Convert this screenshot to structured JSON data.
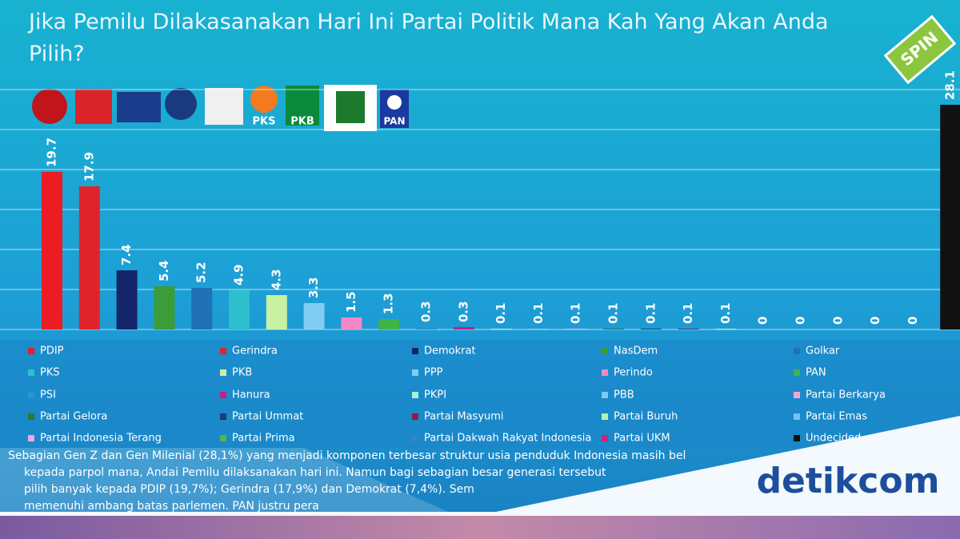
{
  "chart_data": {
    "type": "bar",
    "title": "Jika Pemilu Dilakasanakan Hari Ini Partai Politik Mana Kah Yang Akan Anda Pilih?",
    "categories": [
      "PDIP",
      "Gerindra",
      "Demokrat",
      "NasDem",
      "Golkar",
      "PKS",
      "PKB",
      "PPP",
      "Perindo",
      "PAN",
      "PSI",
      "Hanura",
      "PKPI",
      "PBB",
      "Partai Berkarya",
      "Partai Gelora",
      "Partai Ummat",
      "Partai Masyumi",
      "Partai Buruh",
      "Partai Emas",
      "Partai Indonesia Terang",
      "Partai Prima",
      "Partai Dakwah Rakyat Indonesia",
      "Partai UKM",
      "Undecided"
    ],
    "values": [
      19.7,
      17.9,
      7.4,
      5.4,
      5.2,
      4.9,
      4.3,
      3.3,
      1.5,
      1.3,
      0.3,
      0.3,
      0.1,
      0.1,
      0.1,
      0.1,
      0.1,
      0.1,
      0.1,
      0,
      0,
      0,
      0,
      0,
      28.1
    ],
    "colors": [
      "#ec1c24",
      "#e0232b",
      "#15256a",
      "#3c9c3a",
      "#1f72b4",
      "#2cc0cc",
      "#c8f2a2",
      "#7fcdf3",
      "#f487c6",
      "#3fb446",
      "#2394d6",
      "#c41f85",
      "#a6f2d6",
      "#86c6f2",
      "#f4a6d6",
      "#2c7a2c",
      "#1c3c6e",
      "#8c1c4c",
      "#b4f2b4",
      "#74c4f2",
      "#f2a6e4",
      "#52b452",
      "#3384c4",
      "#d42274",
      "#111111"
    ],
    "ylim": [
      0,
      30
    ],
    "yticks": [
      0,
      5,
      10,
      15,
      20,
      25,
      30
    ],
    "grid": true,
    "logo_labels": [
      "PKS",
      "PKB",
      "PAN"
    ],
    "badge": "SPIN",
    "caption_lines": [
      "Sebagian Gen Z dan Gen Milenial (28,1%) yang menjadi komponen terbesar struktur usia penduduk Indonesia masih bel",
      "kepada parpol mana, Andai Pemilu dilaksanakan hari ini. Namun bagi sebagian besar generasi tersebut",
      "pilih banyak kepada PDIP (19,7%); Gerindra (17,9%) dan Demokrat (7,4%). Sem",
      "memenuhi ambang batas parlemen. PAN justru pera"
    ],
    "watermark": "detikcom"
  }
}
